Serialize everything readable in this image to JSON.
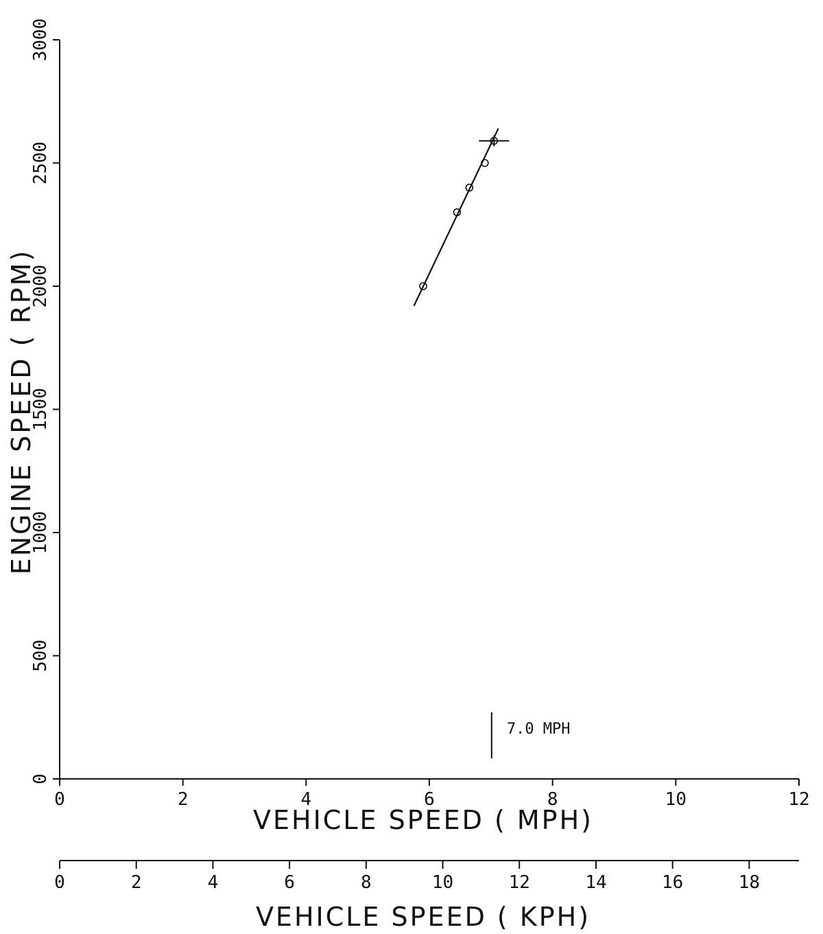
{
  "chart_data": {
    "type": "scatter",
    "ylabel": "ENGINE SPEED ( RPM)",
    "xlabel": "VEHICLE SPEED ( MPH)",
    "xlabel_secondary": "VEHICLE SPEED ( KPH)",
    "x_ticks": [
      "0",
      "2",
      "4",
      "6",
      "8",
      "10",
      "12"
    ],
    "x_secondary_ticks": [
      "0",
      "2",
      "4",
      "6",
      "8",
      "10",
      "12",
      "14",
      "16",
      "18"
    ],
    "y_ticks": [
      "0",
      "500",
      "1000",
      "1500",
      "2000",
      "2500",
      "3000"
    ],
    "xlim": [
      0,
      12
    ],
    "ylim": [
      0,
      3000
    ],
    "x_secondary_lim": [
      0,
      19.3
    ],
    "series": [
      {
        "marker": "circle",
        "points": [
          {
            "x": 5.9,
            "y": 2000
          },
          {
            "x": 6.45,
            "y": 2300
          },
          {
            "x": 6.65,
            "y": 2400
          },
          {
            "x": 6.9,
            "y": 2500
          },
          {
            "x": 7.05,
            "y": 2590
          }
        ]
      }
    ],
    "fit_line": {
      "x": [
        5.75,
        7.12
      ],
      "y": [
        1920,
        2640
      ]
    },
    "crosshair": {
      "x": 7.05,
      "y": 2590
    },
    "annotation": {
      "text": "7.0 MPH",
      "x": 7.0
    },
    "grid": false,
    "legend": "none"
  }
}
